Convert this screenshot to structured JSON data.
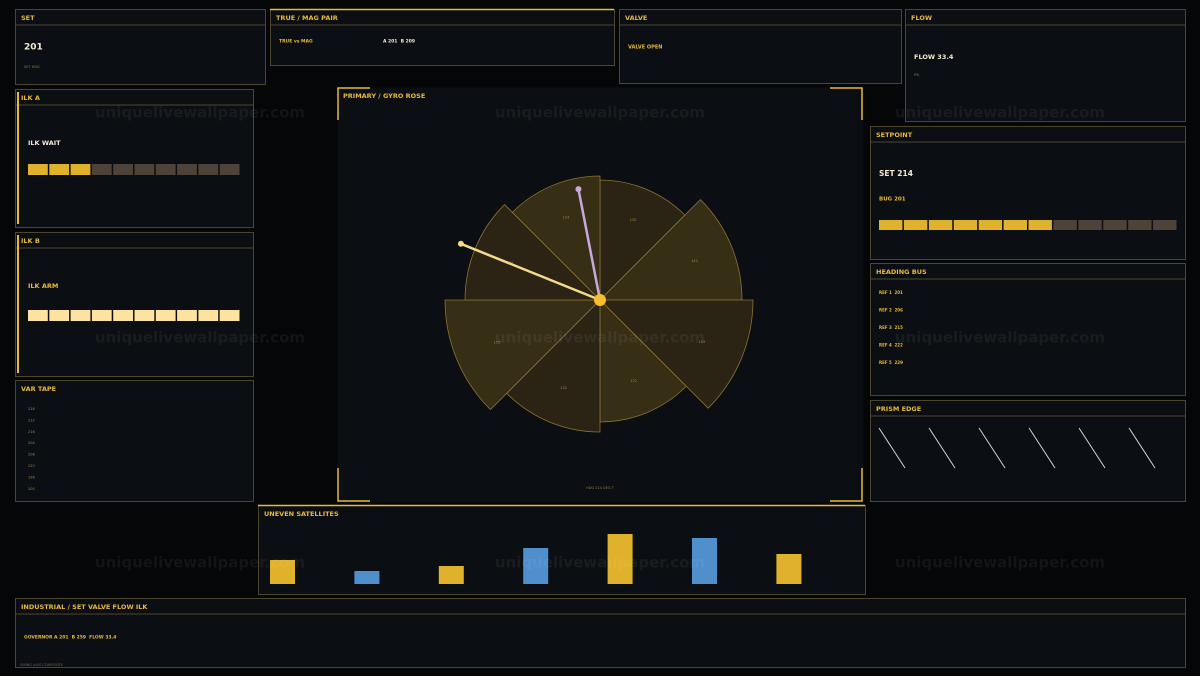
{
  "watermark": "uniquelivewallpaper.com",
  "set": {
    "title": "SET",
    "value": "201",
    "caption": "SET HDG"
  },
  "true_mag": {
    "title": "TRUE / MAG PAIR",
    "label": "TRUE vs MAG",
    "readout": "A 201  B 209"
  },
  "valve": {
    "title": "VALVE",
    "status": "VALVE OPEN"
  },
  "flow": {
    "title": "FLOW",
    "readout": "FLOW 33.4",
    "caption": "PSI"
  },
  "ilk_a": {
    "title": "ILK A",
    "status": "ILK WAIT",
    "segments": 10,
    "lit": 3
  },
  "ilk_b": {
    "title": "ILK B",
    "status": "ILK ARM",
    "segments": 10,
    "lit": 10
  },
  "var_tape": {
    "title": "VAR TAPE",
    "labels": [
      "218",
      "212",
      "216",
      "204",
      "208",
      "220",
      "196",
      "200"
    ]
  },
  "gyro": {
    "title": "PRIMARY / GYRO ROSE",
    "footer": "HDG 214 DEG T",
    "sectors": [
      120,
      142,
      153,
      122,
      132,
      155,
      135,
      124
    ],
    "needles": [
      {
        "heading": 292,
        "color": "#f5d98a"
      },
      {
        "heading": 349,
        "color": "#c9a9d9"
      }
    ]
  },
  "satellites": {
    "title": "UNEVEN SATELLITES",
    "bars": [
      {
        "value": 24,
        "color": "#e0b12a"
      },
      {
        "value": 13,
        "color": "#4f8fcc"
      },
      {
        "value": 18,
        "color": "#e0b12a"
      },
      {
        "value": 36,
        "color": "#4f8fcc"
      },
      {
        "value": 50,
        "color": "#e0b12a"
      },
      {
        "value": 46,
        "color": "#4f8fcc"
      },
      {
        "value": 30,
        "color": "#e0b12a"
      }
    ]
  },
  "setpoint": {
    "title": "SETPOINT",
    "set": "SET 214",
    "bug": "BUG 201",
    "segments": 12,
    "lit": 7
  },
  "heading_bus": {
    "title": "HEADING BUS",
    "rows": [
      "REF 1  201",
      "REF 2  206",
      "REF 3  215",
      "REF 4  222",
      "REF 5  229"
    ]
  },
  "prism": {
    "title": "PRISM EDGE"
  },
  "industrial": {
    "title": "INDUSTRIAL / SET VALVE FLOW ILK",
    "readout": "GOVERNOR A 201  B 259  FLOW 33.4",
    "caption": "SWING AXIS COMPOSITE"
  }
}
